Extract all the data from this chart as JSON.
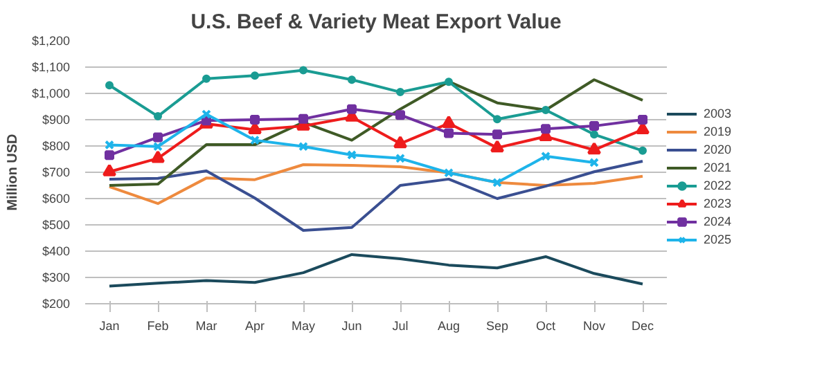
{
  "chart_data": {
    "type": "line",
    "title": "U.S. Beef & Variety Meat Export Value",
    "ylabel": "Million USD",
    "categories": [
      "Jan",
      "Feb",
      "Mar",
      "Apr",
      "May",
      "Jun",
      "Jul",
      "Aug",
      "Sep",
      "Oct",
      "Nov",
      "Dec"
    ],
    "ylim": [
      200,
      1200
    ],
    "yticks": [
      {
        "value": 200,
        "label": "$200"
      },
      {
        "value": 300,
        "label": "$300"
      },
      {
        "value": 400,
        "label": "$400"
      },
      {
        "value": 500,
        "label": "$500"
      },
      {
        "value": 600,
        "label": "$600"
      },
      {
        "value": 700,
        "label": "$700"
      },
      {
        "value": 800,
        "label": "$800"
      },
      {
        "value": 900,
        "label": "$900"
      },
      {
        "value": 1000,
        "label": "$1,000"
      },
      {
        "value": 1100,
        "label": "$1,100"
      },
      {
        "value": 1200,
        "label": "$1,200"
      }
    ],
    "grid": "y",
    "legend": "right",
    "line_style": "solid",
    "series": [
      {
        "name": "2003",
        "color": "#1b4a5c",
        "marker": "none",
        "values": [
          267,
          278,
          288,
          281,
          318,
          387,
          371,
          347,
          336,
          379,
          315,
          275
        ]
      },
      {
        "name": "2019",
        "color": "#ee8a3e",
        "marker": "none",
        "values": [
          645,
          581,
          678,
          672,
          729,
          726,
          721,
          698,
          661,
          650,
          658,
          685
        ]
      },
      {
        "name": "2020",
        "color": "#3a4f91",
        "marker": "none",
        "values": [
          674,
          677,
          705,
          602,
          479,
          490,
          650,
          674,
          600,
          647,
          702,
          742
        ]
      },
      {
        "name": "2021",
        "color": "#3f5a26",
        "marker": "none",
        "values": [
          650,
          655,
          805,
          805,
          890,
          822,
          940,
          1045,
          964,
          937,
          1052,
          974
        ]
      },
      {
        "name": "2022",
        "color": "#1a9c93",
        "marker": "circle",
        "values": [
          1031,
          913,
          1056,
          1068,
          1088,
          1052,
          1005,
          1044,
          902,
          937,
          844,
          782
        ]
      },
      {
        "name": "2023",
        "color": "#ee1c1c",
        "marker": "triangle",
        "values": [
          702,
          753,
          884,
          862,
          876,
          910,
          809,
          886,
          793,
          836,
          785,
          862
        ]
      },
      {
        "name": "2024",
        "color": "#7030a0",
        "marker": "square",
        "values": [
          765,
          833,
          897,
          900,
          903,
          940,
          918,
          849,
          844,
          865,
          876,
          900
        ]
      },
      {
        "name": "2025",
        "color": "#1eb4ea",
        "marker": "cross",
        "values": [
          804,
          798,
          921,
          822,
          798,
          766,
          753,
          698,
          661,
          761,
          737,
          null
        ]
      }
    ]
  }
}
